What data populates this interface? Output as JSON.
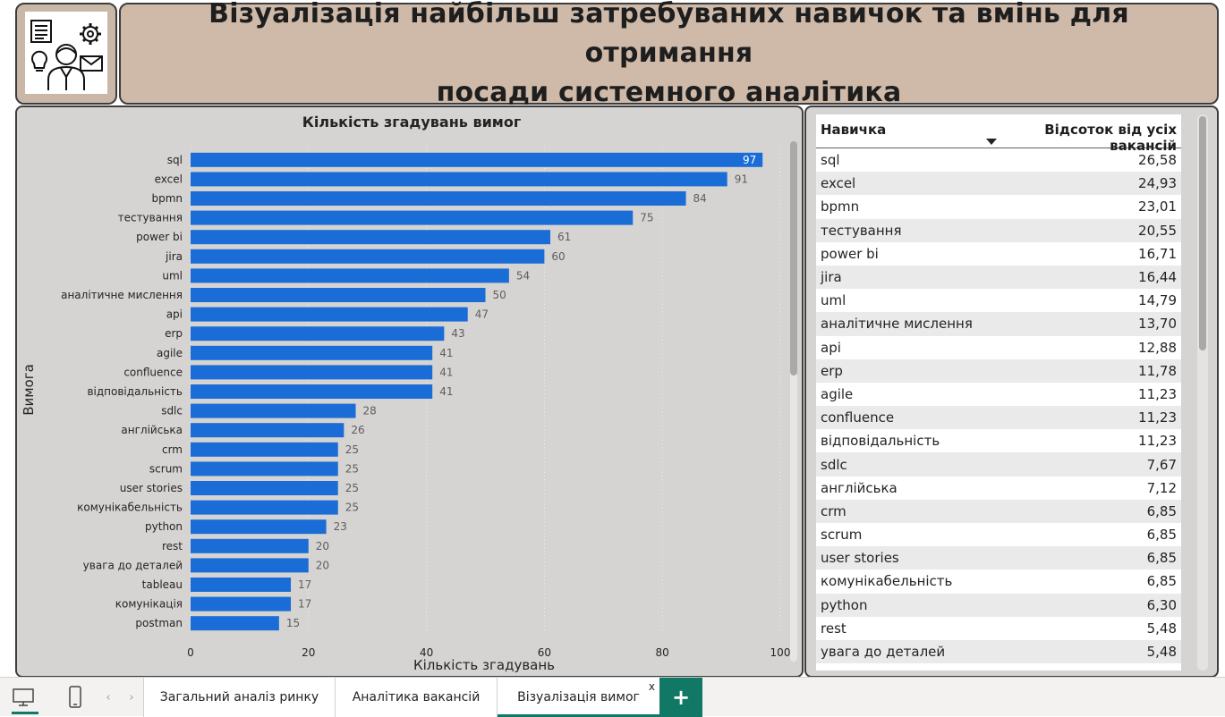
{
  "header": {
    "title_line1": "Візуалізація найбільш затребуваних навичок та вмінь для отримання",
    "title_line2": "посади системного аналітика",
    "logo_icon": "analyst-skills-icon"
  },
  "chart_data": {
    "type": "bar",
    "orientation": "horizontal",
    "title": "Кількість згадувань вимог",
    "xlabel": "Кількість згадувань",
    "ylabel": "Вимога",
    "xlim": [
      0,
      100
    ],
    "xticks": [
      0,
      20,
      40,
      60,
      80,
      100
    ],
    "categories": [
      "sql",
      "excel",
      "bpmn",
      "тестування",
      "power bi",
      "jira",
      "uml",
      "аналітичне мислення",
      "api",
      "erp",
      "agile",
      "confluence",
      "відповідальність",
      "sdlc",
      "англійська",
      "crm",
      "scrum",
      "user stories",
      "комунікабельність",
      "python",
      "rest",
      "увага до деталей",
      "tableau",
      "комунікація",
      "postman"
    ],
    "values": [
      97,
      91,
      84,
      75,
      61,
      60,
      54,
      50,
      47,
      43,
      41,
      41,
      41,
      28,
      26,
      25,
      25,
      25,
      25,
      23,
      20,
      20,
      17,
      17,
      15
    ],
    "bar_color": "#1a6dd6",
    "grid": true
  },
  "table": {
    "col_skill": "Навичка",
    "col_percent": "Відсоток від усіх вакансій",
    "sort_indicator": "sort-descending-icon",
    "rows": [
      {
        "skill": "sql",
        "percent": "26,58"
      },
      {
        "skill": "excel",
        "percent": "24,93"
      },
      {
        "skill": "bpmn",
        "percent": "23,01"
      },
      {
        "skill": "тестування",
        "percent": "20,55"
      },
      {
        "skill": "power bi",
        "percent": "16,71"
      },
      {
        "skill": "jira",
        "percent": "16,44"
      },
      {
        "skill": "uml",
        "percent": "14,79"
      },
      {
        "skill": "аналітичне мислення",
        "percent": "13,70"
      },
      {
        "skill": "api",
        "percent": "12,88"
      },
      {
        "skill": "erp",
        "percent": "11,78"
      },
      {
        "skill": "agile",
        "percent": "11,23"
      },
      {
        "skill": "confluence",
        "percent": "11,23"
      },
      {
        "skill": "відповідальність",
        "percent": "11,23"
      },
      {
        "skill": "sdlc",
        "percent": "7,67"
      },
      {
        "skill": "англійська",
        "percent": "7,12"
      },
      {
        "skill": "crm",
        "percent": "6,85"
      },
      {
        "skill": "scrum",
        "percent": "6,85"
      },
      {
        "skill": "user stories",
        "percent": "6,85"
      },
      {
        "skill": "комунікабельність",
        "percent": "6,85"
      },
      {
        "skill": "python",
        "percent": "6,30"
      },
      {
        "skill": "rest",
        "percent": "5,48"
      },
      {
        "skill": "увага до деталей",
        "percent": "5,48"
      }
    ]
  },
  "bottom_bar": {
    "prev_arrow": "‹",
    "next_arrow": "›",
    "tabs": [
      {
        "label": "Загальний аналіз ринку"
      },
      {
        "label": "Аналітика вакансій"
      },
      {
        "label": "Візуалізація вимог"
      }
    ],
    "close_label": "x",
    "add_label": "+"
  },
  "colors": {
    "accent": "#117865",
    "header_bg": "#cfbaa9",
    "panel_bg": "#d6d4d2"
  }
}
